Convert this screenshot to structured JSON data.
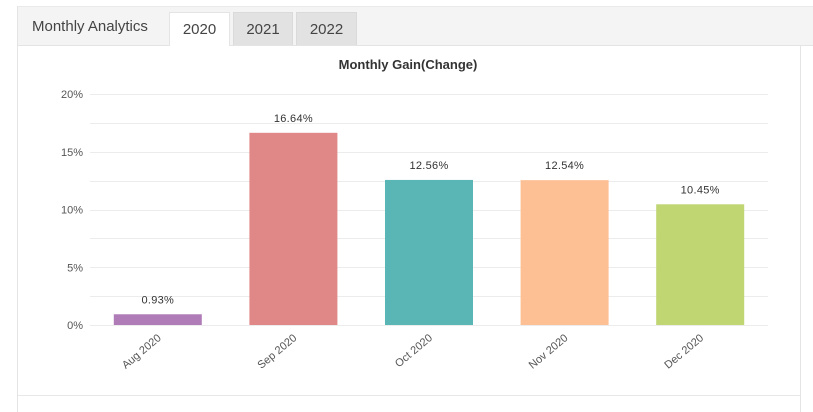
{
  "panel": {
    "title": "Monthly Analytics"
  },
  "tabs": [
    {
      "label": "2020",
      "active": true
    },
    {
      "label": "2021",
      "active": false
    },
    {
      "label": "2022",
      "active": false
    }
  ],
  "chart_data": {
    "type": "bar",
    "title": "Monthly Gain(Change)",
    "xlabel": "",
    "ylabel": "",
    "categories": [
      "Aug 2020",
      "Sep 2020",
      "Oct 2020",
      "Nov 2020",
      "Dec 2020"
    ],
    "values": [
      0.93,
      16.64,
      12.56,
      12.54,
      10.45
    ],
    "data_labels": [
      "0.93%",
      "16.64%",
      "12.56%",
      "12.54%",
      "10.45%"
    ],
    "colors": [
      "#b07cb8",
      "#e08787",
      "#5ab5b5",
      "#fdbf94",
      "#bfd672"
    ],
    "ylim": [
      0,
      20
    ],
    "yticks": [
      0,
      5,
      10,
      15,
      20
    ],
    "ytick_labels": [
      "0%",
      "5%",
      "10%",
      "15%",
      "20%"
    ],
    "grid": true,
    "legend": "none"
  }
}
